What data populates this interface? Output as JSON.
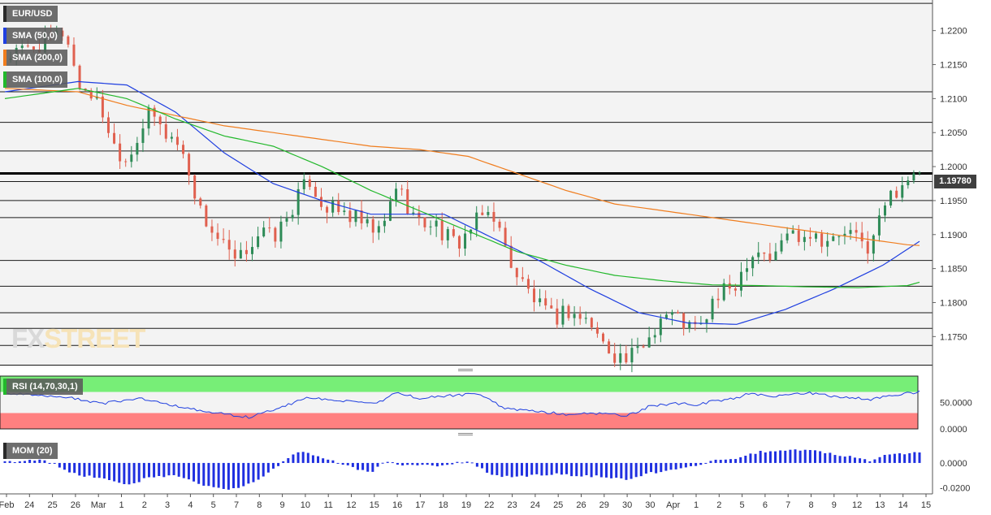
{
  "instrument": "EUR/USD",
  "last_price": "1.19780",
  "watermark": {
    "part1": "FX",
    "part2": "STREET"
  },
  "legends": {
    "price": {
      "label": "EUR/USD",
      "color": "#5a5a5a"
    },
    "sma50": {
      "label": "SMA (50,0)",
      "color": "#1f3fe0"
    },
    "sma200": {
      "label": "SMA (200,0)",
      "color": "#f07d1e"
    },
    "sma100": {
      "label": "SMA (100,0)",
      "color": "#22b82b"
    },
    "rsi": {
      "label": "RSI (14,70,30,1)",
      "color": "#22b82b"
    },
    "mom": {
      "label": "MOM (20)",
      "color": "#5a5a5a"
    }
  },
  "colors": {
    "bull": "#2e8b57",
    "bear": "#e0604f",
    "rsi_line": "#1f3fe0",
    "rsi_overbought": "#77ee77",
    "rsi_oversold": "#ff8080",
    "mom_bar": "#1f2fe0"
  },
  "chart_data": [
    {
      "type": "candlestick",
      "panel": "price",
      "ylim": [
        1.1705,
        1.2245
      ],
      "yticks": [
        "1.2200",
        "1.2150",
        "1.2100",
        "1.2050",
        "1.2000",
        "1.1950",
        "1.1900",
        "1.1850",
        "1.1800",
        "1.1750"
      ],
      "xticks": [
        "Feb",
        "24",
        "25",
        "26",
        "Mar",
        "1",
        "2",
        "3",
        "4",
        "5",
        "7",
        "8",
        "9",
        "10",
        "11",
        "12",
        "15",
        "16",
        "17",
        "18",
        "19",
        "22",
        "23",
        "24",
        "25",
        "26",
        "29",
        "30",
        "30",
        "Apr",
        "1",
        "2",
        "5",
        "6",
        "7",
        "8",
        "9",
        "12",
        "13",
        "14",
        "15"
      ],
      "horizontal_levels": [
        1.224,
        1.211,
        1.2065,
        1.2023,
        1.1978,
        1.195,
        1.1925,
        1.1862,
        1.1824,
        1.1785,
        1.1762,
        1.1737,
        1.1708
      ],
      "resistance": 1.199,
      "close_path": [
        [
          0,
          1.216
        ],
        [
          3,
          1.218
        ],
        [
          5,
          1.22
        ],
        [
          6,
          1.212
        ],
        [
          7,
          1.211
        ],
        [
          8,
          1.208
        ],
        [
          9,
          1.203
        ],
        [
          10,
          1.201
        ],
        [
          11,
          1.205
        ],
        [
          12,
          1.208
        ],
        [
          13,
          1.205
        ],
        [
          14,
          1.204
        ],
        [
          15,
          1.2
        ],
        [
          16,
          1.1935
        ],
        [
          17,
          1.1905
        ],
        [
          18,
          1.188
        ],
        [
          19,
          1.1855
        ],
        [
          20,
          1.1885
        ],
        [
          21,
          1.1905
        ],
        [
          22,
          1.1895
        ],
        [
          23,
          1.192
        ],
        [
          24,
          1.1955
        ],
        [
          25,
          1.198
        ],
        [
          26,
          1.1945
        ],
        [
          27,
          1.1935
        ],
        [
          28,
          1.193
        ],
        [
          29,
          1.192
        ],
        [
          30,
          1.1905
        ],
        [
          31,
          1.1905
        ],
        [
          32,
          1.1975
        ],
        [
          33,
          1.1945
        ],
        [
          34,
          1.1915
        ],
        [
          35,
          1.192
        ],
        [
          36,
          1.19
        ],
        [
          37,
          1.1885
        ],
        [
          38,
          1.1905
        ],
        [
          39,
          1.1925
        ],
        [
          40,
          1.1935
        ],
        [
          41,
          1.188
        ],
        [
          42,
          1.184
        ],
        [
          43,
          1.1815
        ],
        [
          44,
          1.179
        ],
        [
          45,
          1.1775
        ],
        [
          46,
          1.179
        ],
        [
          47,
          1.178
        ],
        [
          48,
          1.177
        ],
        [
          49,
          1.174
        ],
        [
          50,
          1.1725
        ],
        [
          51,
          1.1715
        ],
        [
          52,
          1.173
        ],
        [
          53,
          1.1755
        ],
        [
          54,
          1.1785
        ],
        [
          55,
          1.178
        ],
        [
          56,
          1.1765
        ],
        [
          57,
          1.176
        ],
        [
          58,
          1.18
        ],
        [
          59,
          1.1815
        ],
        [
          60,
          1.183
        ],
        [
          61,
          1.187
        ],
        [
          62,
          1.188
        ],
        [
          63,
          1.186
        ],
        [
          64,
          1.1905
        ],
        [
          65,
          1.19
        ],
        [
          66,
          1.1905
        ],
        [
          67,
          1.1895
        ],
        [
          68,
          1.189
        ],
        [
          69,
          1.1905
        ],
        [
          70,
          1.189
        ],
        [
          71,
          1.188
        ],
        [
          72,
          1.194
        ],
        [
          73,
          1.1965
        ],
        [
          74,
          1.1985
        ],
        [
          75,
          1.198
        ]
      ],
      "series": [
        {
          "name": "SMA (50,0)",
          "values": [
            [
              0,
              1.211
            ],
            [
              6,
              1.2125
            ],
            [
              10,
              1.212
            ],
            [
              14,
              1.208
            ],
            [
              18,
              1.202
            ],
            [
              22,
              1.1975
            ],
            [
              26,
              1.195
            ],
            [
              30,
              1.193
            ],
            [
              32,
              1.193
            ],
            [
              36,
              1.193
            ],
            [
              40,
              1.1895
            ],
            [
              44,
              1.186
            ],
            [
              48,
              1.182
            ],
            [
              52,
              1.1785
            ],
            [
              56,
              1.177
            ],
            [
              60,
              1.1768
            ],
            [
              64,
              1.179
            ],
            [
              68,
              1.182
            ],
            [
              72,
              1.1855
            ],
            [
              75,
              1.189
            ]
          ]
        },
        {
          "name": "SMA (200,0)",
          "values": [
            [
              0,
              1.2115
            ],
            [
              6,
              1.211
            ],
            [
              10,
              1.209
            ],
            [
              14,
              1.2075
            ],
            [
              18,
              1.206
            ],
            [
              22,
              1.205
            ],
            [
              26,
              1.204
            ],
            [
              30,
              1.203
            ],
            [
              34,
              1.2025
            ],
            [
              38,
              1.2015
            ],
            [
              42,
              1.199
            ],
            [
              46,
              1.1965
            ],
            [
              50,
              1.1945
            ],
            [
              56,
              1.193
            ],
            [
              62,
              1.1915
            ],
            [
              66,
              1.1905
            ],
            [
              70,
              1.1895
            ],
            [
              74,
              1.1885
            ],
            [
              75,
              1.1884
            ]
          ]
        },
        {
          "name": "SMA (100,0)",
          "values": [
            [
              0,
              1.21
            ],
            [
              6,
              1.2115
            ],
            [
              10,
              1.21
            ],
            [
              14,
              1.207
            ],
            [
              18,
              1.2045
            ],
            [
              22,
              1.203
            ],
            [
              26,
              1.2
            ],
            [
              30,
              1.1965
            ],
            [
              34,
              1.1935
            ],
            [
              38,
              1.1905
            ],
            [
              42,
              1.1875
            ],
            [
              46,
              1.1855
            ],
            [
              50,
              1.184
            ],
            [
              54,
              1.1832
            ],
            [
              58,
              1.1826
            ],
            [
              62,
              1.1825
            ],
            [
              66,
              1.1823
            ],
            [
              70,
              1.1822
            ],
            [
              74,
              1.1825
            ],
            [
              75,
              1.183
            ]
          ]
        }
      ]
    },
    {
      "type": "line",
      "panel": "rsi",
      "ylim": [
        0,
        100
      ],
      "yticks": [
        "50.0000",
        "0.0000"
      ],
      "overbought": 70,
      "oversold": 30,
      "series": [
        {
          "name": "RSI (14,70,30,1)",
          "values": [
            [
              0,
              68
            ],
            [
              3,
              62
            ],
            [
              5,
              60
            ],
            [
              8,
              48
            ],
            [
              11,
              58
            ],
            [
              14,
              44
            ],
            [
              16,
              34
            ],
            [
              18,
              28
            ],
            [
              20,
              22
            ],
            [
              22,
              36
            ],
            [
              25,
              60
            ],
            [
              27,
              54
            ],
            [
              30,
              48
            ],
            [
              31,
              52
            ],
            [
              32,
              70
            ],
            [
              34,
              58
            ],
            [
              37,
              64
            ],
            [
              39,
              66
            ],
            [
              41,
              38
            ],
            [
              43,
              34
            ],
            [
              46,
              28
            ],
            [
              49,
              30
            ],
            [
              51,
              25
            ],
            [
              53,
              44
            ],
            [
              55,
              48
            ],
            [
              57,
              46
            ],
            [
              58,
              52
            ],
            [
              60,
              58
            ],
            [
              61,
              68
            ],
            [
              63,
              62
            ],
            [
              66,
              68
            ],
            [
              68,
              62
            ],
            [
              70,
              58
            ],
            [
              71,
              56
            ],
            [
              73,
              64
            ],
            [
              75,
              70
            ]
          ]
        }
      ]
    },
    {
      "type": "bar",
      "panel": "mom",
      "ylim": [
        -0.0235,
        0.0195
      ],
      "yticks": [
        "0.0000",
        "-0.0200"
      ],
      "values_path": [
        [
          0,
          0.001
        ],
        [
          3,
          0.002
        ],
        [
          4,
          -0.001
        ],
        [
          6,
          -0.01
        ],
        [
          8,
          -0.012
        ],
        [
          10,
          -0.018
        ],
        [
          12,
          -0.011
        ],
        [
          14,
          -0.01
        ],
        [
          17,
          -0.02
        ],
        [
          19,
          -0.021
        ],
        [
          21,
          -0.012
        ],
        [
          24,
          0.009
        ],
        [
          25,
          0.007
        ],
        [
          27,
          0.001
        ],
        [
          29,
          -0.005
        ],
        [
          30,
          -0.008
        ],
        [
          31,
          0.001
        ],
        [
          33,
          -0.002
        ],
        [
          36,
          -0.002
        ],
        [
          38,
          0.002
        ],
        [
          40,
          -0.01
        ],
        [
          42,
          -0.011
        ],
        [
          45,
          -0.009
        ],
        [
          47,
          -0.01
        ],
        [
          49,
          -0.011
        ],
        [
          51,
          -0.013
        ],
        [
          53,
          -0.008
        ],
        [
          55,
          -0.005
        ],
        [
          57,
          -0.001
        ],
        [
          58,
          0.002
        ],
        [
          60,
          0.004
        ],
        [
          62,
          0.009
        ],
        [
          64,
          0.01
        ],
        [
          66,
          0.011
        ],
        [
          68,
          0.007
        ],
        [
          70,
          0.004
        ],
        [
          71,
          0.002
        ],
        [
          72,
          0.006
        ],
        [
          75,
          0.009
        ]
      ]
    }
  ]
}
